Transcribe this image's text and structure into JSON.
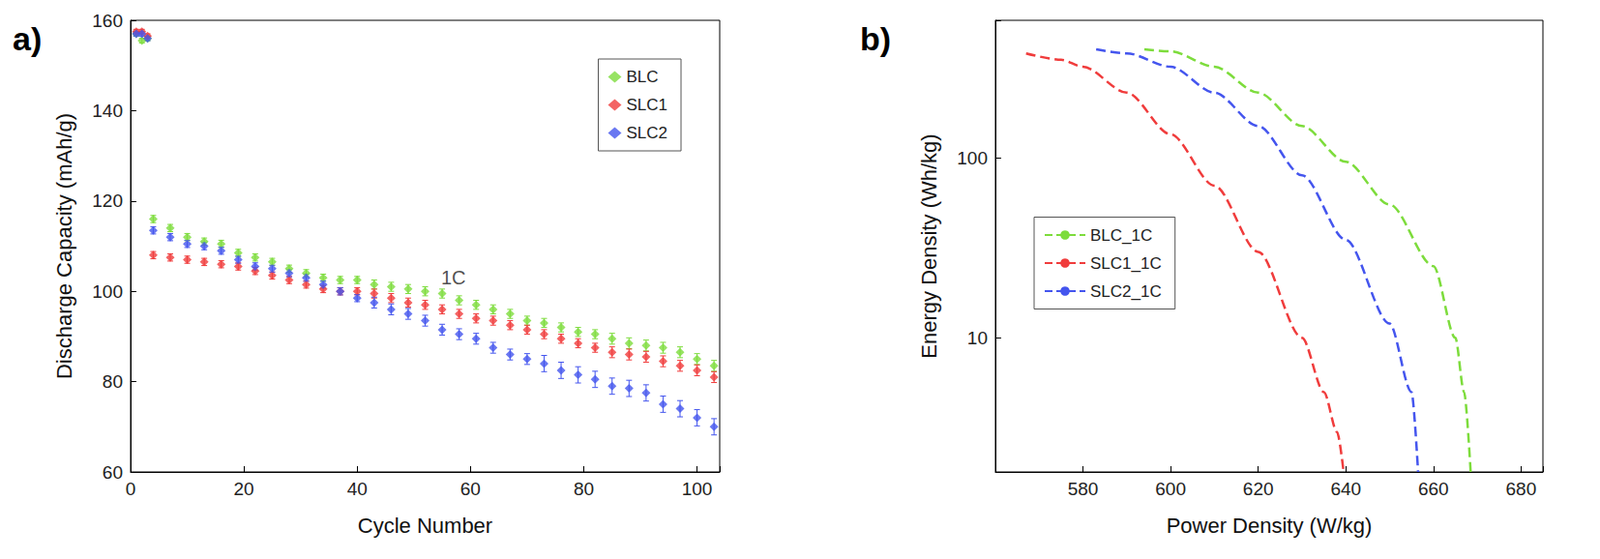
{
  "chart_data": [
    {
      "type": "scatter",
      "title": "a)",
      "xlabel": "Cycle Number",
      "ylabel": "Discharge Capacity (mAh/g)",
      "x": [
        1,
        2,
        3,
        4,
        7,
        10,
        13,
        16,
        19,
        22,
        25,
        28,
        31,
        34,
        37,
        40,
        43,
        46,
        49,
        52,
        55,
        58,
        61,
        64,
        67,
        70,
        73,
        76,
        79,
        82,
        85,
        88,
        91,
        94,
        97,
        100,
        103
      ],
      "series": [
        {
          "name": "BLC",
          "color": "#7ddc3c",
          "values": [
            157,
            155.5,
            156,
            116,
            114,
            112,
            111,
            110.5,
            108.5,
            107.5,
            106.5,
            105,
            104,
            103,
            102.5,
            102.5,
            101.5,
            101,
            100.5,
            100,
            99.5,
            98,
            97,
            96,
            95,
            93.5,
            93,
            92,
            91,
            90.5,
            89.5,
            88.5,
            88,
            87.5,
            86.5,
            85,
            83.5
          ],
          "errors": [
            0.5,
            0.5,
            0.5,
            0.8,
            0.8,
            0.8,
            0.8,
            0.8,
            0.8,
            0.8,
            0.8,
            0.8,
            0.8,
            0.8,
            0.8,
            0.8,
            1,
            1,
            1,
            1,
            1,
            1,
            1,
            1,
            1,
            1,
            1,
            1,
            1,
            1,
            1.2,
            1.2,
            1.2,
            1.2,
            1.2,
            1.2,
            1.2
          ]
        },
        {
          "name": "SLC1",
          "color": "#f03c3c",
          "values": [
            157.5,
            157.5,
            156.5,
            108,
            107.5,
            107,
            106.5,
            106,
            105.5,
            104.5,
            103.5,
            102.5,
            101.5,
            100.5,
            100,
            100,
            99.5,
            98.5,
            97.5,
            97,
            96,
            95,
            94,
            93.5,
            92.5,
            91.5,
            90.5,
            89.5,
            88.5,
            87.5,
            86.5,
            86,
            85.5,
            84.5,
            83.5,
            82.5,
            81
          ],
          "errors": [
            0.5,
            0.5,
            0.5,
            0.8,
            0.8,
            0.8,
            0.8,
            0.8,
            0.8,
            0.8,
            0.8,
            0.8,
            0.8,
            0.8,
            0.8,
            0.8,
            1,
            1,
            1,
            1,
            1,
            1,
            1,
            1,
            1,
            1,
            1,
            1,
            1,
            1,
            1.2,
            1.2,
            1.2,
            1.2,
            1.2,
            1.2,
            1.2
          ]
        },
        {
          "name": "SLC2",
          "color": "#4455ee",
          "values": [
            157,
            157,
            156,
            113.5,
            112,
            110.5,
            110,
            109,
            107,
            105.5,
            105,
            104,
            103,
            101.5,
            100,
            98.5,
            97.5,
            96,
            95,
            93.5,
            91.5,
            90.5,
            89.5,
            87.5,
            86,
            85,
            84,
            82.5,
            81.5,
            80.5,
            79,
            78.5,
            77.5,
            75,
            74,
            72,
            70
          ],
          "errors": [
            0.5,
            0.5,
            0.5,
            0.8,
            0.8,
            0.8,
            0.8,
            0.8,
            0.8,
            0.8,
            0.8,
            0.8,
            0.8,
            0.8,
            0.8,
            0.8,
            1.2,
            1.2,
            1.2,
            1.2,
            1.2,
            1.2,
            1.2,
            1.2,
            1.2,
            1.2,
            1.8,
            1.8,
            1.8,
            1.8,
            1.8,
            1.8,
            1.8,
            1.8,
            1.8,
            1.8,
            1.8
          ]
        }
      ],
      "annotations": [
        {
          "text": "1C",
          "x": 57,
          "y": 103
        }
      ],
      "xlim": [
        0,
        104
      ],
      "xticks": [
        0,
        20,
        40,
        60,
        80,
        100
      ],
      "ylim": [
        60,
        160
      ],
      "yticks": [
        60,
        80,
        100,
        120,
        140,
        160
      ],
      "marker": "diamond",
      "legend": "upper right",
      "grid": false
    },
    {
      "type": "line",
      "title": "b)",
      "xlabel": "Power Density (W/kg)",
      "ylabel": "Energy Density (Wh/kg)",
      "series": [
        {
          "name": "BLC_1C",
          "color": "#7ddc3c",
          "x": [
            594,
            600,
            610,
            620,
            630,
            640,
            650,
            660,
            665,
            667,
            668.5
          ],
          "values": [
            400,
            390,
            320,
            230,
            150,
            95,
            55,
            25,
            10,
            5,
            1.8
          ]
        },
        {
          "name": "SLC1_1C",
          "color": "#f03c3c",
          "x": [
            567,
            575,
            580,
            590,
            600,
            610,
            620,
            630,
            635,
            638,
            639.5
          ],
          "values": [
            380,
            350,
            320,
            230,
            135,
            70,
            30,
            10,
            5,
            3,
            1.8
          ]
        },
        {
          "name": "SLC2_1C",
          "color": "#4455ee",
          "x": [
            583,
            590,
            600,
            610,
            620,
            630,
            640,
            650,
            655,
            656.5
          ],
          "values": [
            400,
            380,
            320,
            230,
            150,
            80,
            35,
            12,
            5,
            1.8
          ]
        }
      ],
      "xlim": [
        560,
        685
      ],
      "xticks": [
        580,
        600,
        620,
        640,
        660,
        680
      ],
      "ylim": [
        1.8,
        580
      ],
      "yticks": [
        10,
        100
      ],
      "log": "y",
      "line_style": "dashed",
      "legend": "center left",
      "grid": false
    }
  ]
}
